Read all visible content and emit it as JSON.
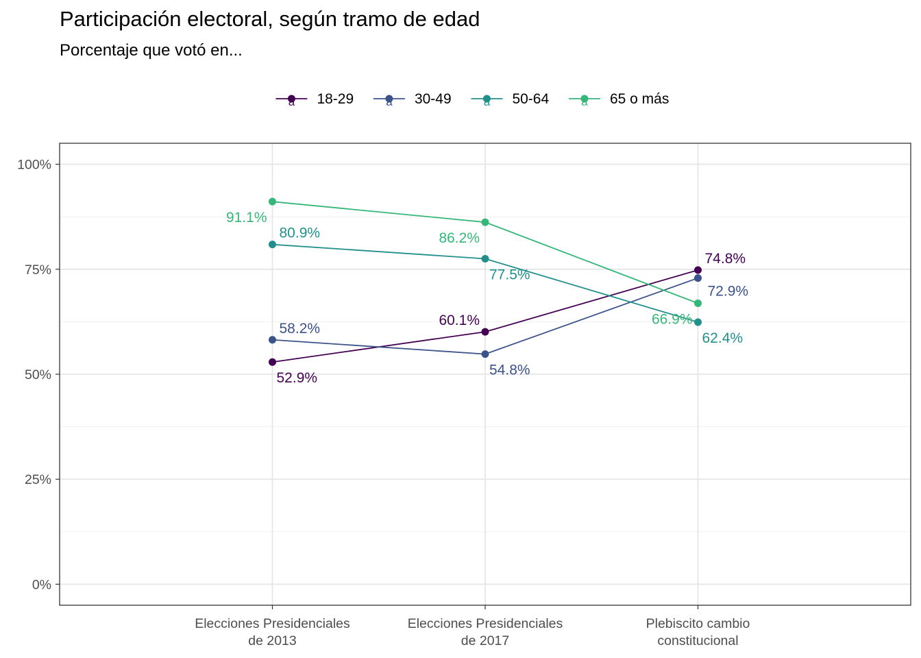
{
  "chart_data": {
    "type": "line",
    "title": "Participación electoral, según tramo de edad",
    "subtitle": "Porcentaje que votó en...",
    "xlabel": "",
    "ylabel": "",
    "categories": [
      [
        "Elecciones Presidenciales",
        "de 2013"
      ],
      [
        "Elecciones Presidenciales",
        "de 2017"
      ],
      [
        "Plebiscito cambio",
        "constitucional"
      ]
    ],
    "ylim": [
      -5,
      105
    ],
    "yticks": [
      0,
      25,
      50,
      75,
      100
    ],
    "ytick_labels": [
      "0%",
      "25%",
      "50%",
      "75%",
      "100%"
    ],
    "grid": true,
    "legend": "top-center",
    "legend_key_glyph": "a",
    "series": [
      {
        "name": "18-29",
        "color": "#440154",
        "values": [
          52.9,
          60.1,
          74.8
        ],
        "labels": [
          "52.9%",
          "60.1%",
          "74.8%"
        ],
        "label_pos": [
          "below-right",
          "above-left",
          "above-right"
        ]
      },
      {
        "name": "30-49",
        "color": "#3b528b",
        "values": [
          58.2,
          54.8,
          72.9
        ],
        "labels": [
          "58.2%",
          "54.8%",
          "72.9%"
        ],
        "label_pos": [
          "above-right",
          "below-right",
          "right"
        ]
      },
      {
        "name": "50-64",
        "color": "#21908c",
        "values": [
          80.9,
          77.5,
          62.4
        ],
        "labels": [
          "80.9%",
          "77.5%",
          "62.4%"
        ],
        "label_pos": [
          "above-right",
          "below-right",
          "below-right"
        ]
      },
      {
        "name": "65 o más",
        "color": "#35b779",
        "values": [
          91.1,
          86.2,
          66.9
        ],
        "labels": [
          "91.1%",
          "86.2%",
          "66.9%"
        ],
        "label_pos": [
          "below-left",
          "below-left",
          "below-left"
        ]
      }
    ]
  }
}
